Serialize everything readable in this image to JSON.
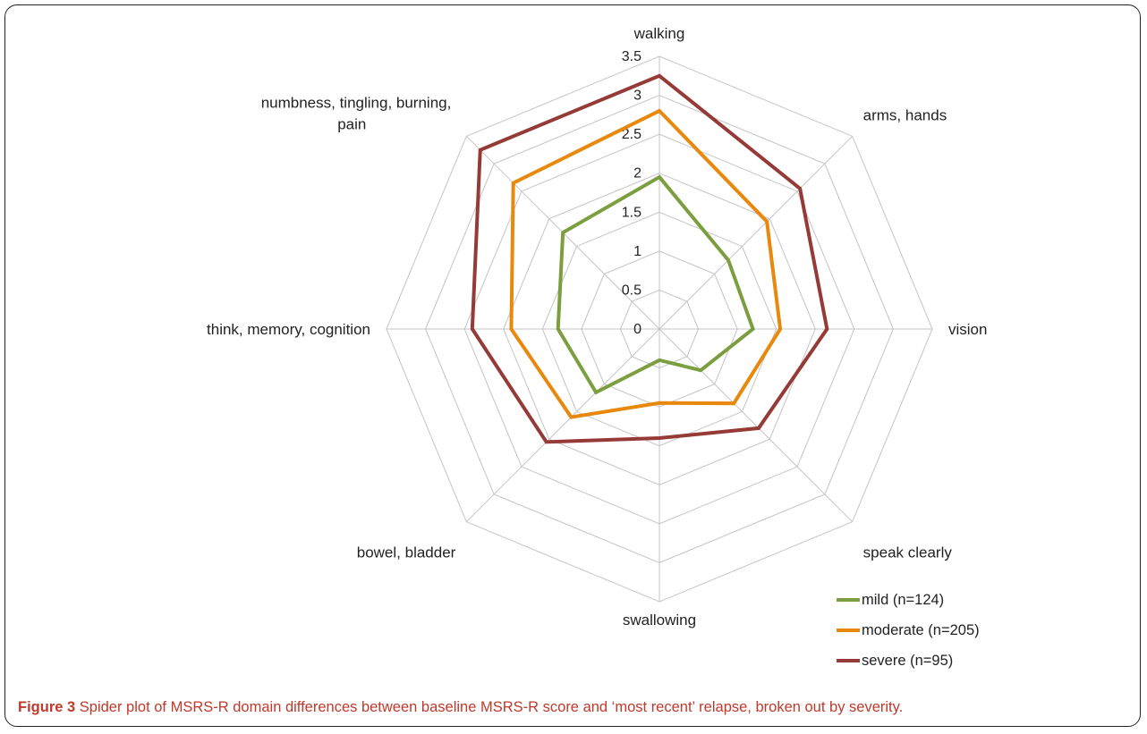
{
  "caption": {
    "label": "Figure 3",
    "text": "Spider plot of MSRS-R domain differences between baseline MSRS-R score and ‘most recent’ relapse, broken out by severity."
  },
  "chart_data": {
    "type": "radar",
    "axes": [
      "walking",
      "arms, hands",
      "vision",
      "speak clearly",
      "swallowing",
      "bowel, bladder",
      "think, memory, cognition",
      "numbness, tingling, burning, pain"
    ],
    "r_ticks": [
      0,
      0.5,
      1,
      1.5,
      2,
      2.5,
      3,
      3.5
    ],
    "r_tick_labels": [
      "0",
      "0.5",
      "1",
      "1.5",
      "2",
      "2.5",
      "3",
      "3.5"
    ],
    "rlim": [
      0,
      3.5
    ],
    "grid": true,
    "legend_position": "bottom-right",
    "series": [
      {
        "name": "mild (n=124)",
        "color": "#7b9e3e",
        "values": [
          1.95,
          1.25,
          1.2,
          0.75,
          0.4,
          1.15,
          1.3,
          1.75
        ]
      },
      {
        "name": "moderate (n=205)",
        "color": "#e8880c",
        "values": [
          2.8,
          1.95,
          1.55,
          1.35,
          0.95,
          1.6,
          1.9,
          2.65
        ]
      },
      {
        "name": "severe (n=95)",
        "color": "#953a36",
        "values": [
          3.25,
          2.55,
          2.15,
          1.8,
          1.4,
          2.05,
          2.4,
          3.25
        ]
      }
    ]
  }
}
